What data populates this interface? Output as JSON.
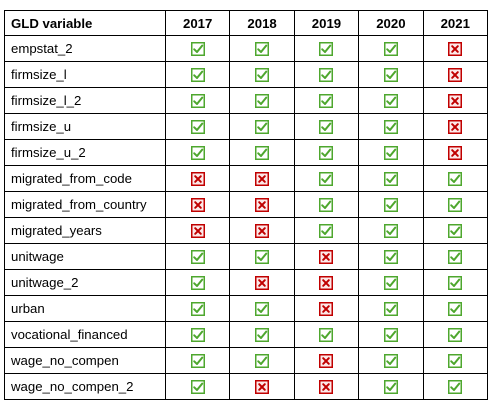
{
  "table": {
    "header": {
      "variable_label": "GLD variable",
      "years": [
        "2017",
        "2018",
        "2019",
        "2020",
        "2021"
      ]
    },
    "rows": [
      {
        "variable": "empstat_2",
        "status": [
          "yes",
          "yes",
          "yes",
          "yes",
          "no"
        ]
      },
      {
        "variable": "firmsize_l",
        "status": [
          "yes",
          "yes",
          "yes",
          "yes",
          "no"
        ]
      },
      {
        "variable": "firmsize_l_2",
        "status": [
          "yes",
          "yes",
          "yes",
          "yes",
          "no"
        ]
      },
      {
        "variable": "firmsize_u",
        "status": [
          "yes",
          "yes",
          "yes",
          "yes",
          "no"
        ]
      },
      {
        "variable": "firmsize_u_2",
        "status": [
          "yes",
          "yes",
          "yes",
          "yes",
          "no"
        ]
      },
      {
        "variable": "migrated_from_code",
        "status": [
          "no",
          "no",
          "yes",
          "yes",
          "yes"
        ]
      },
      {
        "variable": "migrated_from_country",
        "status": [
          "no",
          "no",
          "yes",
          "yes",
          "yes"
        ]
      },
      {
        "variable": "migrated_years",
        "status": [
          "no",
          "no",
          "yes",
          "yes",
          "yes"
        ]
      },
      {
        "variable": "unitwage",
        "status": [
          "yes",
          "yes",
          "no",
          "yes",
          "yes"
        ]
      },
      {
        "variable": "unitwage_2",
        "status": [
          "yes",
          "no",
          "no",
          "yes",
          "yes"
        ]
      },
      {
        "variable": "urban",
        "status": [
          "yes",
          "yes",
          "no",
          "yes",
          "yes"
        ]
      },
      {
        "variable": "vocational_financed",
        "status": [
          "yes",
          "yes",
          "yes",
          "yes",
          "yes"
        ]
      },
      {
        "variable": "wage_no_compen",
        "status": [
          "yes",
          "yes",
          "no",
          "yes",
          "yes"
        ]
      },
      {
        "variable": "wage_no_compen_2",
        "status": [
          "yes",
          "no",
          "no",
          "yes",
          "yes"
        ]
      }
    ]
  },
  "icons": {
    "yes": "check-box-icon",
    "no": "cross-box-icon"
  },
  "colors": {
    "check": "#4ea72e",
    "cross": "#c00000",
    "border": "#000000"
  }
}
